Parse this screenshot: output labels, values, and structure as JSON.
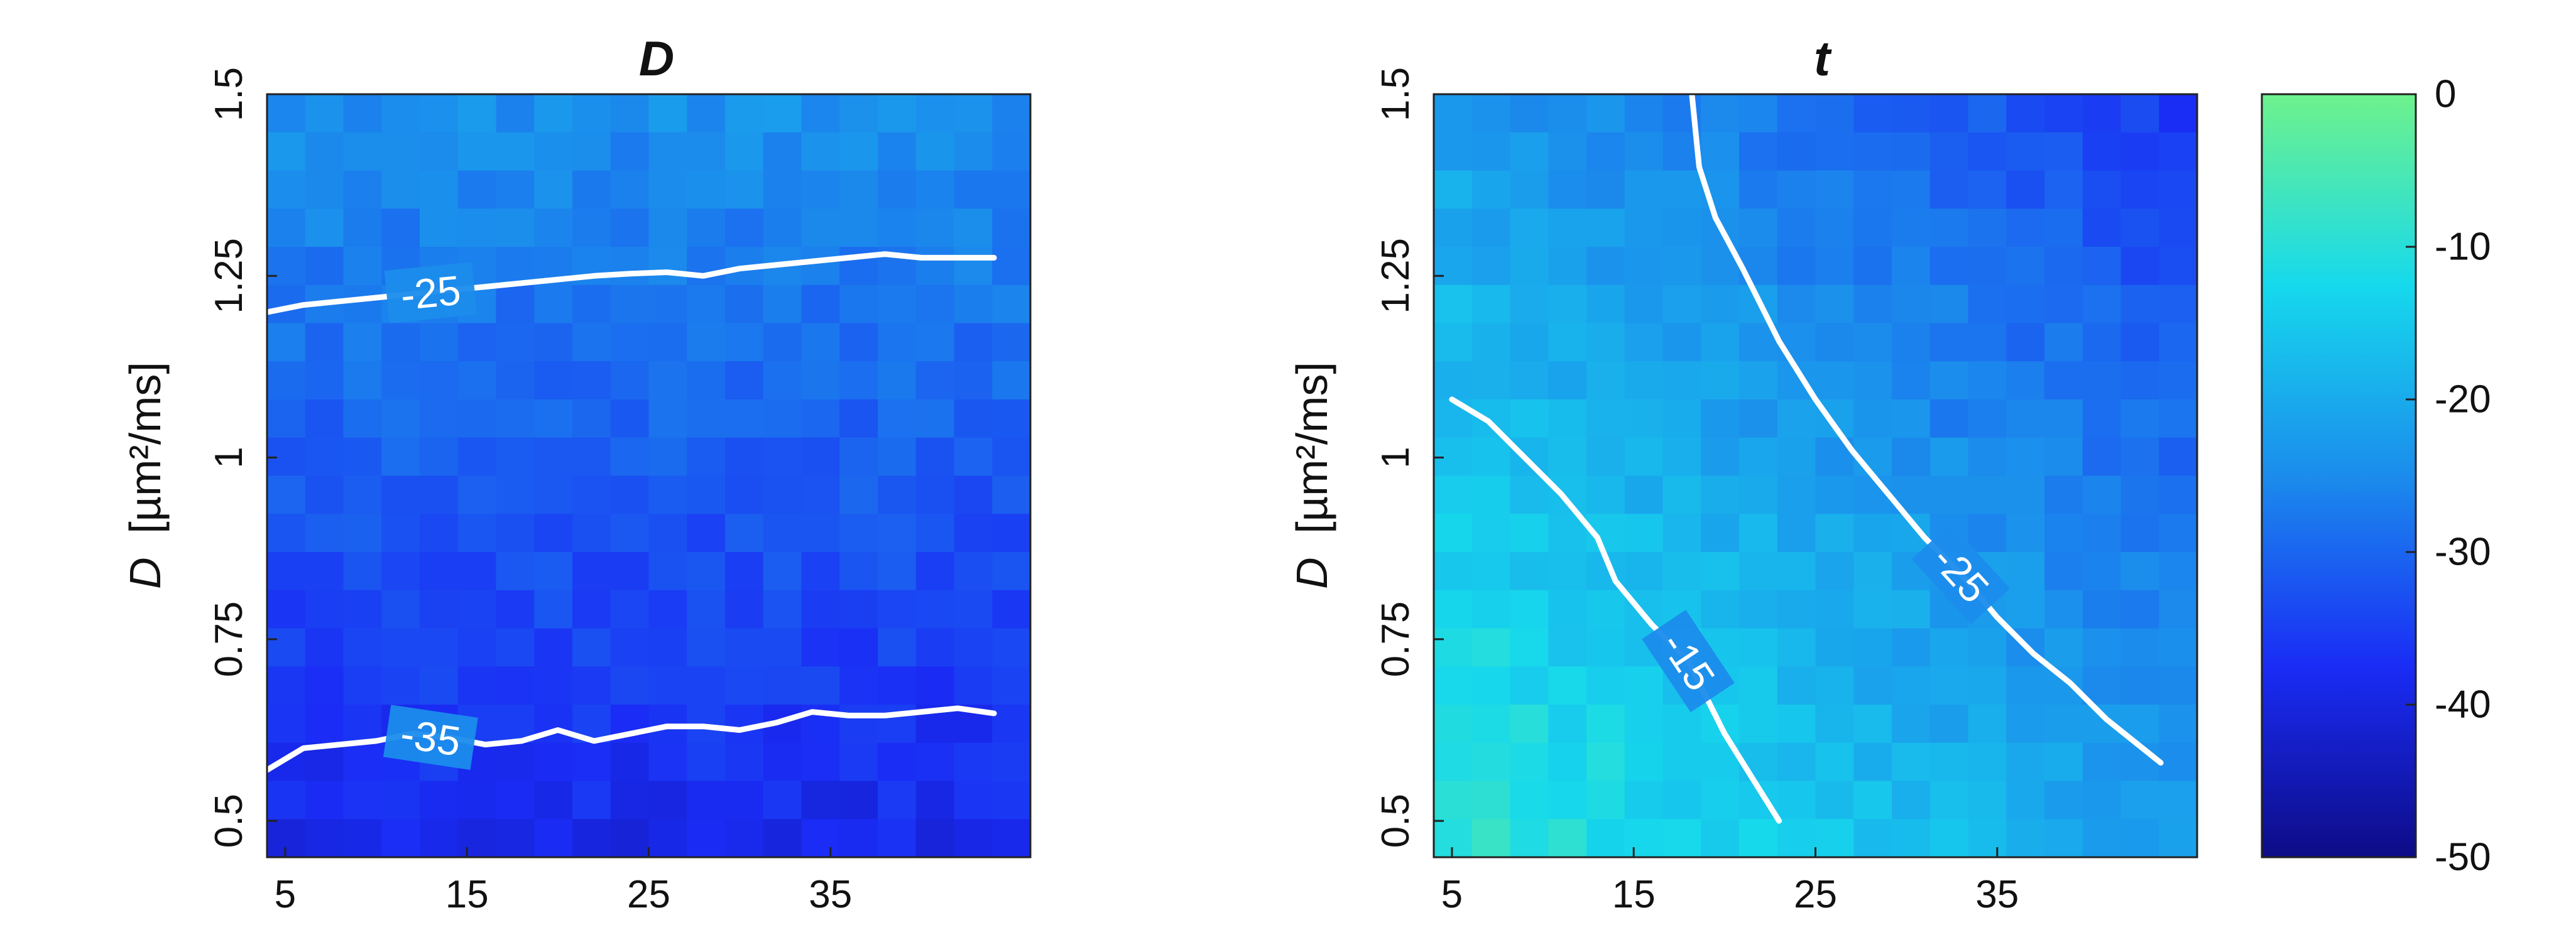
{
  "chart_data": [
    {
      "type": "heatmap",
      "title": "D",
      "xlabel": "",
      "ylabel_italic": "D",
      "ylabel_rest": "[µm²/ms]",
      "xlim": [
        4,
        46
      ],
      "ylim": [
        0.45,
        1.5
      ],
      "xticks": [
        "5",
        "15",
        "25",
        "35"
      ],
      "yticks": [
        "0.5",
        "0.75",
        "1",
        "1.25",
        "1.5"
      ],
      "n_cols": 20,
      "n_rows": 20,
      "gradient": "vertical",
      "value_top": -24,
      "value_bottom": -39,
      "contours": [
        {
          "level_label": "-25",
          "points": [
            [
              4,
              1.2
            ],
            [
              6,
              1.21
            ],
            [
              8,
              1.215
            ],
            [
              10,
              1.22
            ],
            [
              12,
              1.225
            ],
            [
              14,
              1.23
            ],
            [
              16,
              1.235
            ],
            [
              18,
              1.24
            ],
            [
              20,
              1.245
            ],
            [
              22,
              1.25
            ],
            [
              24,
              1.253
            ],
            [
              26,
              1.255
            ],
            [
              28,
              1.25
            ],
            [
              30,
              1.26
            ],
            [
              32,
              1.265
            ],
            [
              34,
              1.27
            ],
            [
              36,
              1.275
            ],
            [
              38,
              1.28
            ],
            [
              40,
              1.275
            ],
            [
              42,
              1.275
            ],
            [
              44,
              1.275
            ]
          ],
          "label_at": [
            13,
            1.227
          ]
        },
        {
          "level_label": "-35",
          "points": [
            [
              4,
              0.57
            ],
            [
              6,
              0.6
            ],
            [
              8,
              0.605
            ],
            [
              10,
              0.61
            ],
            [
              12,
              0.62
            ],
            [
              14,
              0.615
            ],
            [
              16,
              0.605
            ],
            [
              18,
              0.61
            ],
            [
              20,
              0.625
            ],
            [
              22,
              0.61
            ],
            [
              24,
              0.62
            ],
            [
              26,
              0.63
            ],
            [
              28,
              0.63
            ],
            [
              30,
              0.625
            ],
            [
              32,
              0.635
            ],
            [
              34,
              0.65
            ],
            [
              36,
              0.645
            ],
            [
              38,
              0.645
            ],
            [
              40,
              0.65
            ],
            [
              42,
              0.655
            ],
            [
              44,
              0.648
            ]
          ],
          "label_at": [
            13,
            0.615
          ]
        }
      ]
    },
    {
      "type": "heatmap",
      "title": "t",
      "xlabel": "",
      "ylabel_italic": "D",
      "ylabel_rest": "[µm²/ms]",
      "xlim": [
        4,
        46
      ],
      "ylim": [
        0.45,
        1.5
      ],
      "xticks": [
        "5",
        "15",
        "25",
        "35"
      ],
      "yticks": [
        "0.5",
        "0.75",
        "1",
        "1.25",
        "1.5"
      ],
      "n_cols": 20,
      "n_rows": 20,
      "gradient": "diagonal",
      "value_bottom_left": -8,
      "value_top_right": -36,
      "contours": [
        {
          "level_label": "-15",
          "points": [
            [
              5,
              1.08
            ],
            [
              7,
              1.05
            ],
            [
              9,
              1.0
            ],
            [
              11,
              0.95
            ],
            [
              13,
              0.89
            ],
            [
              14,
              0.83
            ],
            [
              16,
              0.77
            ],
            [
              18,
              0.72
            ],
            [
              20,
              0.62
            ],
            [
              22,
              0.54
            ],
            [
              23,
              0.5
            ]
          ],
          "label_at": [
            18,
            0.72
          ]
        },
        {
          "level_label": "-25",
          "points": [
            [
              18.2,
              1.5
            ],
            [
              18.6,
              1.4
            ],
            [
              19.5,
              1.33
            ],
            [
              21,
              1.26
            ],
            [
              23,
              1.16
            ],
            [
              25,
              1.08
            ],
            [
              27,
              1.01
            ],
            [
              29,
              0.95
            ],
            [
              31,
              0.89
            ],
            [
              33,
              0.84
            ],
            [
              35,
              0.78
            ],
            [
              37,
              0.73
            ],
            [
              39,
              0.69
            ],
            [
              41,
              0.64
            ],
            [
              44,
              0.58
            ]
          ],
          "label_at": [
            33,
            0.84
          ]
        }
      ]
    }
  ],
  "colorbar": {
    "min": -50,
    "max": 0,
    "ticks": [
      "0",
      "-10",
      "-20",
      "-30",
      "-40",
      "-50"
    ],
    "colors": [
      "#0d0c86",
      "#1a2cf5",
      "#1b8cec",
      "#16d9ec",
      "#6ef28c"
    ]
  }
}
